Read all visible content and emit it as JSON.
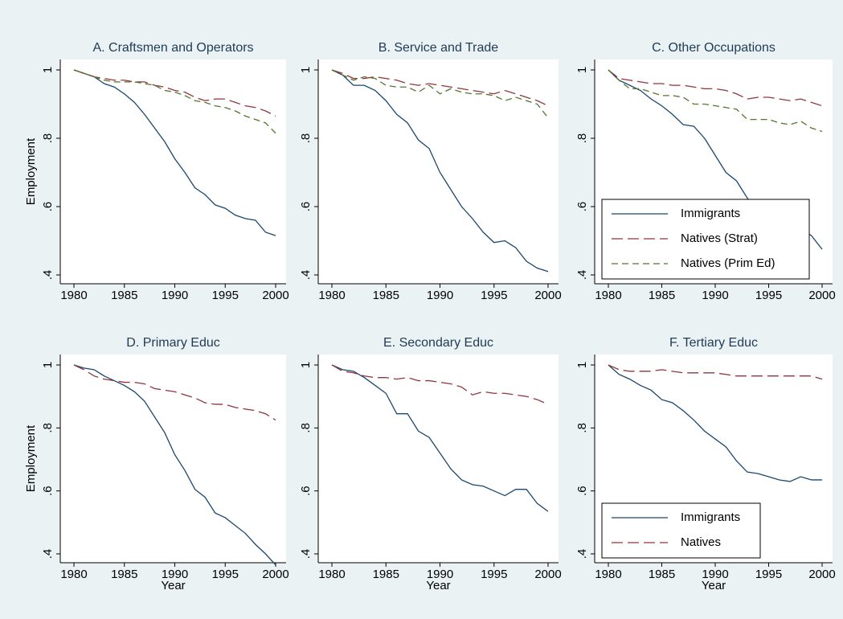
{
  "chart_data": [
    {
      "type": "line",
      "title": "A. Craftsmen and Operators",
      "ylabel": "Employment",
      "x": [
        1980,
        1981,
        1982,
        1983,
        1984,
        1985,
        1986,
        1987,
        1988,
        1989,
        1990,
        1991,
        1992,
        1993,
        1994,
        1995,
        1996,
        1997,
        1998,
        1999,
        2000
      ],
      "xlim": [
        1980,
        2000
      ],
      "xticks": [
        1980,
        1985,
        1990,
        1995,
        2000
      ],
      "ylim": [
        0.4,
        1
      ],
      "yticks": [
        {
          "value": 0.4,
          "label": ".4"
        },
        {
          "value": 0.6,
          "label": ".6"
        },
        {
          "value": 0.8,
          "label": ".8"
        },
        1
      ],
      "series": [
        {
          "name": "Immigrants",
          "color": "#1a476f",
          "values": [
            1,
            0.99,
            0.98,
            0.96,
            0.95,
            0.93,
            0.905,
            0.87,
            0.83,
            0.79,
            0.74,
            0.7,
            0.655,
            0.635,
            0.605,
            0.595,
            0.575,
            0.565,
            0.56,
            0.525,
            0.515
          ]
        },
        {
          "name": "Natives (Strat)",
          "color": "#90353b",
          "values": [
            1,
            0.99,
            0.98,
            0.975,
            0.97,
            0.97,
            0.965,
            0.965,
            0.955,
            0.95,
            0.94,
            0.935,
            0.92,
            0.91,
            0.915,
            0.915,
            0.905,
            0.895,
            0.89,
            0.88,
            0.865
          ]
        },
        {
          "name": "Natives (Prim Ed)",
          "color": "#55752f",
          "values": [
            1,
            0.99,
            0.98,
            0.97,
            0.965,
            0.965,
            0.965,
            0.96,
            0.955,
            0.94,
            0.935,
            0.925,
            0.91,
            0.905,
            0.895,
            0.89,
            0.88,
            0.865,
            0.855,
            0.845,
            0.815
          ]
        }
      ]
    },
    {
      "type": "line",
      "title": "B. Service and Trade",
      "x": [
        1980,
        1981,
        1982,
        1983,
        1984,
        1985,
        1986,
        1987,
        1988,
        1989,
        1990,
        1991,
        1992,
        1993,
        1994,
        1995,
        1996,
        1997,
        1998,
        1999,
        2000
      ],
      "xlim": [
        1980,
        2000
      ],
      "xticks": [
        1980,
        1985,
        1990,
        1995,
        2000
      ],
      "ylim": [
        0.4,
        1
      ],
      "yticks": [
        {
          "value": 0.4,
          "label": ".4"
        },
        {
          "value": 0.6,
          "label": ".6"
        },
        {
          "value": 0.8,
          "label": ".8"
        },
        1
      ],
      "series": [
        {
          "name": "Immigrants",
          "color": "#1a476f",
          "values": [
            1,
            0.985,
            0.955,
            0.955,
            0.94,
            0.91,
            0.87,
            0.845,
            0.795,
            0.77,
            0.7,
            0.65,
            0.6,
            0.565,
            0.525,
            0.495,
            0.5,
            0.48,
            0.44,
            0.42,
            0.41
          ]
        },
        {
          "name": "Natives (Strat)",
          "color": "#90353b",
          "values": [
            1,
            0.99,
            0.975,
            0.975,
            0.98,
            0.975,
            0.97,
            0.96,
            0.955,
            0.96,
            0.955,
            0.95,
            0.945,
            0.94,
            0.935,
            0.93,
            0.94,
            0.93,
            0.92,
            0.91,
            0.895
          ]
        },
        {
          "name": "Natives (Prim Ed)",
          "color": "#55752f",
          "values": [
            1,
            0.985,
            0.97,
            0.98,
            0.975,
            0.955,
            0.95,
            0.95,
            0.935,
            0.955,
            0.93,
            0.945,
            0.935,
            0.93,
            0.93,
            0.925,
            0.91,
            0.92,
            0.91,
            0.9,
            0.86
          ]
        }
      ]
    },
    {
      "type": "line",
      "title": "C. Other Occupations",
      "legend": "lower left",
      "x": [
        1980,
        1981,
        1982,
        1983,
        1984,
        1985,
        1986,
        1987,
        1988,
        1989,
        1990,
        1991,
        1992,
        1993,
        1994,
        1995,
        1996,
        1997,
        1998,
        1999,
        2000
      ],
      "xlim": [
        1980,
        2000
      ],
      "xticks": [
        1980,
        1985,
        1990,
        1995,
        2000
      ],
      "ylim": [
        0.4,
        1
      ],
      "yticks": [
        {
          "value": 0.4,
          "label": ".4"
        },
        {
          "value": 0.6,
          "label": ".6"
        },
        {
          "value": 0.8,
          "label": ".8"
        },
        1
      ],
      "series": [
        {
          "name": "Immigrants",
          "color": "#1a476f",
          "values": [
            1,
            0.97,
            0.955,
            0.94,
            0.915,
            0.895,
            0.87,
            0.84,
            0.835,
            0.8,
            0.75,
            0.7,
            0.675,
            0.625,
            0.585,
            0.575,
            0.56,
            0.545,
            0.535,
            0.515,
            0.475
          ]
        },
        {
          "name": "Natives (Strat)",
          "color": "#90353b",
          "values": [
            1,
            0.975,
            0.97,
            0.965,
            0.96,
            0.96,
            0.955,
            0.955,
            0.95,
            0.945,
            0.945,
            0.94,
            0.93,
            0.915,
            0.92,
            0.92,
            0.915,
            0.91,
            0.915,
            0.905,
            0.895
          ]
        },
        {
          "name": "Natives (Prim Ed)",
          "color": "#55752f",
          "values": [
            1,
            0.97,
            0.945,
            0.945,
            0.935,
            0.925,
            0.925,
            0.92,
            0.9,
            0.9,
            0.895,
            0.89,
            0.885,
            0.855,
            0.855,
            0.855,
            0.845,
            0.84,
            0.85,
            0.83,
            0.82
          ]
        }
      ]
    },
    {
      "type": "line",
      "title": "D. Primary Educ",
      "ylabel": "Employment",
      "xlabel": "Year",
      "x": [
        1980,
        1981,
        1982,
        1983,
        1984,
        1985,
        1986,
        1987,
        1988,
        1989,
        1990,
        1991,
        1992,
        1993,
        1994,
        1995,
        1996,
        1997,
        1998,
        1999,
        2000
      ],
      "xlim": [
        1980,
        2000
      ],
      "xticks": [
        1980,
        1985,
        1990,
        1995,
        2000
      ],
      "ylim": [
        0.4,
        1
      ],
      "yticks": [
        {
          "value": 0.4,
          "label": ".4"
        },
        {
          "value": 0.6,
          "label": ".6"
        },
        {
          "value": 0.8,
          "label": ".8"
        },
        1
      ],
      "series": [
        {
          "name": "Immigrants",
          "color": "#1a476f",
          "values": [
            1,
            0.99,
            0.985,
            0.965,
            0.95,
            0.935,
            0.915,
            0.885,
            0.835,
            0.785,
            0.715,
            0.665,
            0.605,
            0.58,
            0.53,
            0.515,
            0.49,
            0.465,
            0.43,
            0.4,
            0.365
          ]
        },
        {
          "name": "Natives",
          "color": "#90353b",
          "values": [
            1,
            0.985,
            0.965,
            0.955,
            0.95,
            0.945,
            0.945,
            0.94,
            0.925,
            0.92,
            0.915,
            0.905,
            0.895,
            0.88,
            0.875,
            0.875,
            0.865,
            0.86,
            0.855,
            0.845,
            0.825
          ]
        }
      ]
    },
    {
      "type": "line",
      "title": "E. Secondary Educ",
      "xlabel": "Year",
      "x": [
        1980,
        1981,
        1982,
        1983,
        1984,
        1985,
        1986,
        1987,
        1988,
        1989,
        1990,
        1991,
        1992,
        1993,
        1994,
        1995,
        1996,
        1997,
        1998,
        1999,
        2000
      ],
      "xlim": [
        1980,
        2000
      ],
      "xticks": [
        1980,
        1985,
        1990,
        1995,
        2000
      ],
      "ylim": [
        0.4,
        1
      ],
      "yticks": [
        {
          "value": 0.4,
          "label": ".4"
        },
        {
          "value": 0.6,
          "label": ".6"
        },
        {
          "value": 0.8,
          "label": ".8"
        },
        1
      ],
      "series": [
        {
          "name": "Immigrants",
          "color": "#1a476f",
          "values": [
            1,
            0.985,
            0.98,
            0.96,
            0.935,
            0.91,
            0.845,
            0.845,
            0.79,
            0.77,
            0.72,
            0.67,
            0.635,
            0.62,
            0.615,
            0.6,
            0.585,
            0.605,
            0.605,
            0.56,
            0.535
          ]
        },
        {
          "name": "Natives",
          "color": "#90353b",
          "values": [
            1,
            0.98,
            0.975,
            0.965,
            0.96,
            0.96,
            0.955,
            0.96,
            0.95,
            0.95,
            0.945,
            0.94,
            0.93,
            0.905,
            0.915,
            0.91,
            0.91,
            0.905,
            0.9,
            0.89,
            0.875
          ]
        }
      ]
    },
    {
      "type": "line",
      "title": "F. Tertiary Educ",
      "xlabel": "Year",
      "legend": "lower left",
      "x": [
        1980,
        1981,
        1982,
        1983,
        1984,
        1985,
        1986,
        1987,
        1988,
        1989,
        1990,
        1991,
        1992,
        1993,
        1994,
        1995,
        1996,
        1997,
        1998,
        1999,
        2000
      ],
      "xlim": [
        1980,
        2000
      ],
      "xticks": [
        1980,
        1985,
        1990,
        1995,
        2000
      ],
      "ylim": [
        0.4,
        1
      ],
      "yticks": [
        {
          "value": 0.4,
          "label": ".4"
        },
        {
          "value": 0.6,
          "label": ".6"
        },
        {
          "value": 0.8,
          "label": ".8"
        },
        1
      ],
      "series": [
        {
          "name": "Immigrants",
          "color": "#1a476f",
          "values": [
            1,
            0.97,
            0.955,
            0.935,
            0.92,
            0.89,
            0.88,
            0.855,
            0.825,
            0.79,
            0.765,
            0.74,
            0.695,
            0.66,
            0.655,
            0.645,
            0.635,
            0.63,
            0.645,
            0.635,
            0.635
          ]
        },
        {
          "name": "Natives",
          "color": "#90353b",
          "values": [
            1,
            0.985,
            0.98,
            0.98,
            0.98,
            0.985,
            0.98,
            0.975,
            0.975,
            0.975,
            0.975,
            0.97,
            0.965,
            0.965,
            0.965,
            0.965,
            0.965,
            0.965,
            0.965,
            0.965,
            0.955
          ]
        }
      ]
    }
  ]
}
